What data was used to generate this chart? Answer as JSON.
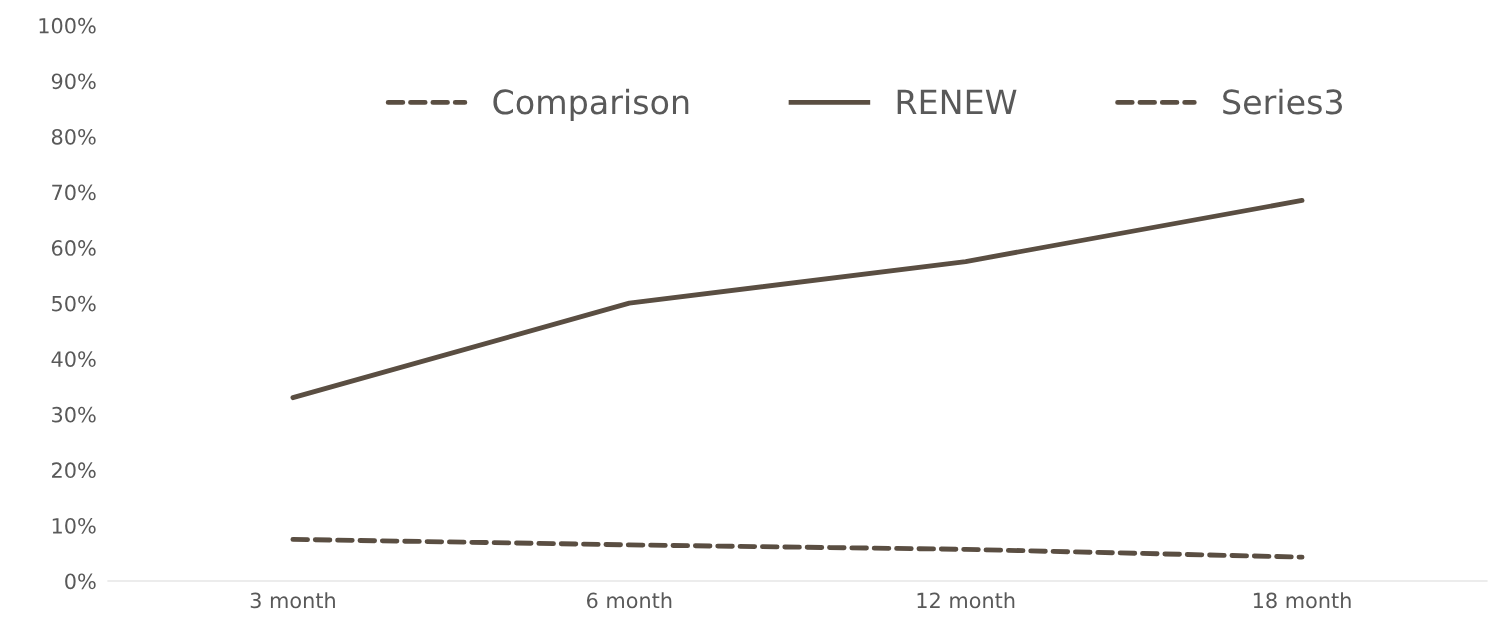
{
  "chart_data": {
    "type": "line",
    "categories": [
      "3 month",
      "6 month",
      "12 month",
      "18 month"
    ],
    "series": [
      {
        "name": "Comparison",
        "color": "#5a4e42",
        "line_style": "dashed",
        "values": [
          7.5,
          6.5,
          5.7,
          4.3
        ]
      },
      {
        "name": "RENEW",
        "color": "#5a4e42",
        "line_style": "solid",
        "values": [
          33,
          50,
          57.5,
          68.5
        ]
      },
      {
        "name": "Series3",
        "color": "#5a4e42",
        "line_style": "dashed",
        "values": [
          null,
          null,
          null,
          null
        ]
      }
    ],
    "ylim": [
      0,
      100
    ],
    "yticks": [
      {
        "value": 0,
        "label": "0%"
      },
      {
        "value": 10,
        "label": "10%"
      },
      {
        "value": 20,
        "label": "20%"
      },
      {
        "value": 30,
        "label": "30%"
      },
      {
        "value": 40,
        "label": "40%"
      },
      {
        "value": 50,
        "label": "50%"
      },
      {
        "value": 60,
        "label": "60%"
      },
      {
        "value": 70,
        "label": "70%"
      },
      {
        "value": 80,
        "label": "80%"
      },
      {
        "value": 90,
        "label": "90%"
      },
      {
        "value": 100,
        "label": "100%"
      }
    ],
    "grid": false,
    "legend": "top",
    "marker": "none"
  }
}
